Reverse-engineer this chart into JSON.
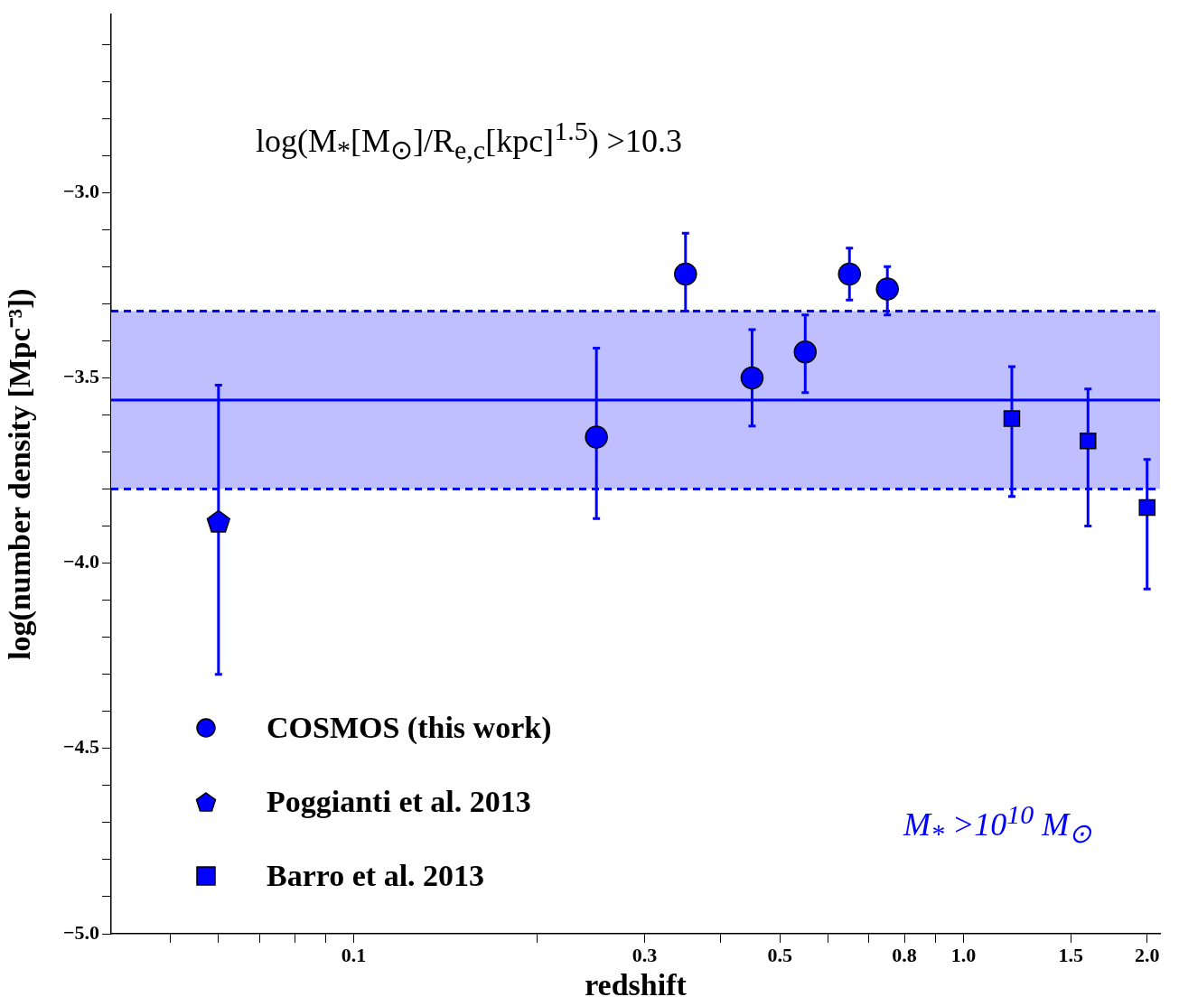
{
  "chart_data": {
    "type": "scatter",
    "xlabel": "redshift",
    "ylabel": "log(number density [Mpc⁻³])",
    "log": "x",
    "grid": false,
    "legend": "bottom left",
    "xlim": [
      0.04,
      2.1
    ],
    "xticks": [
      {
        "value": 0.05,
        "label": null
      },
      {
        "value": 0.06,
        "label": null
      },
      {
        "value": 0.07,
        "label": null
      },
      {
        "value": 0.08,
        "label": null
      },
      {
        "value": 0.09,
        "label": null
      },
      0.1,
      {
        "value": 0.2,
        "label": null
      },
      0.3,
      {
        "value": 0.4,
        "label": null
      },
      0.5,
      {
        "value": 0.6,
        "label": null
      },
      {
        "value": 0.7,
        "label": null
      },
      0.8,
      {
        "value": 0.9,
        "label": null
      },
      {
        "value": 1,
        "label": "1.0"
      },
      1.5,
      {
        "value": 2,
        "label": "2.0"
      }
    ],
    "ylim": [
      -5,
      -2.52
    ],
    "yticks": [
      {
        "value": -5,
        "label": "−5.0"
      },
      {
        "value": -4.9,
        "label": null
      },
      {
        "value": -4.8,
        "label": null
      },
      {
        "value": -4.7,
        "label": null
      },
      {
        "value": -4.6,
        "label": null
      },
      {
        "value": -4.5,
        "label": "−4.5"
      },
      {
        "value": -4.4,
        "label": null
      },
      {
        "value": -4.3,
        "label": null
      },
      {
        "value": -4.2,
        "label": null
      },
      {
        "value": -4.1,
        "label": null
      },
      {
        "value": -4,
        "label": "−4.0"
      },
      {
        "value": -3.9,
        "label": null
      },
      {
        "value": -3.8,
        "label": null
      },
      {
        "value": -3.7,
        "label": null
      },
      {
        "value": -3.6,
        "label": null
      },
      {
        "value": -3.5,
        "label": "−3.5"
      },
      {
        "value": -3.4,
        "label": null
      },
      {
        "value": -3.3,
        "label": null
      },
      {
        "value": -3.2,
        "label": null
      },
      {
        "value": -3.1,
        "label": null
      },
      {
        "value": -3,
        "label": "−3.0"
      },
      {
        "value": -2.9,
        "label": null
      },
      {
        "value": -2.8,
        "label": null
      },
      {
        "value": -2.7,
        "label": null
      },
      {
        "value": -2.6,
        "label": null
      }
    ],
    "series": [
      {
        "name": "COSMOS (this work)",
        "color": "#0000ff",
        "marker": "circle",
        "x": [
          0.25,
          0.35,
          0.45,
          0.55,
          0.65,
          0.75
        ],
        "values": [
          -3.66,
          -3.22,
          -3.5,
          -3.43,
          -3.22,
          -3.26
        ],
        "errors": [
          [
            -3.88,
            -3.42
          ],
          [
            -3.32,
            -3.11
          ],
          [
            -3.63,
            -3.37
          ],
          [
            -3.54,
            -3.33
          ],
          [
            -3.29,
            -3.15
          ],
          [
            -3.33,
            -3.2
          ]
        ]
      },
      {
        "name": "Poggianti et al. 2013",
        "color": "#0000ff",
        "x": [
          0.06
        ],
        "values": [
          -3.89
        ],
        "errors": [
          [
            -4.3,
            -3.52
          ]
        ]
      },
      {
        "name": "Barro et al. 2013",
        "color": "#0000ff",
        "marker": "square",
        "x": [
          1.2,
          1.6,
          2.0
        ],
        "values": [
          -3.61,
          -3.67,
          -3.85
        ],
        "errors": [
          [
            -3.82,
            -3.47
          ],
          [
            -3.9,
            -3.53
          ],
          [
            -4.07,
            -3.72
          ]
        ]
      }
    ],
    "ref_lines": [
      {
        "axis": "y",
        "value": -3.56,
        "color": "#0000ff",
        "line_style": "solid"
      },
      {
        "axis": "y",
        "value": -3.8,
        "color": "#0000ff",
        "line_style": "dashed"
      },
      {
        "axis": "y",
        "value": -3.32,
        "color": "#0000ff",
        "line_style": "dashed"
      }
    ],
    "bands": [
      {
        "axis": "y",
        "from": -3.8,
        "to": -3.32,
        "color": "#bfbfff"
      }
    ],
    "annotations": [
      "log(M$_{*}$[M$_{⊙}$]/R$_{e,c}$[kpc]$^{1.5}$) >10.3",
      "M$_{*}$ >10$^{10}$ M$_{⊙}$"
    ]
  }
}
